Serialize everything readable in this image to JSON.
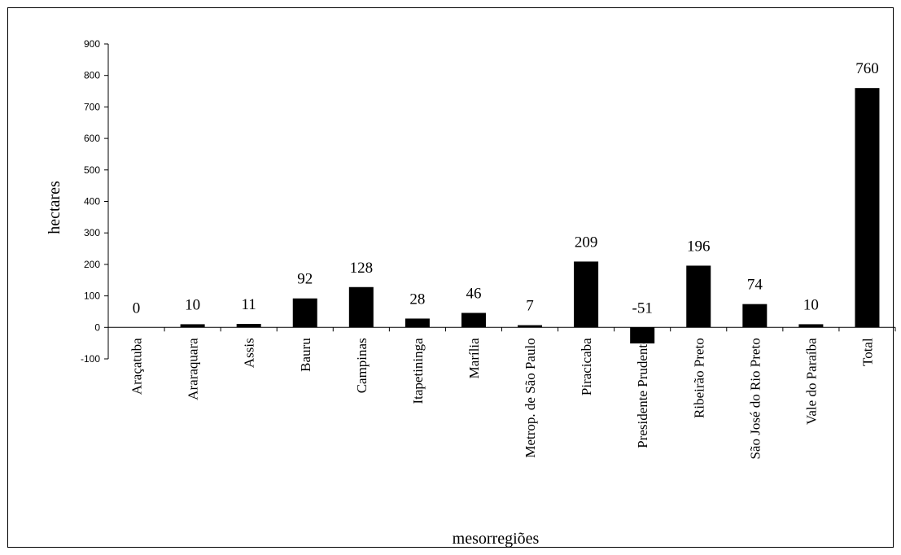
{
  "chart_data": {
    "type": "bar",
    "title": "",
    "xlabel": "mesorregiões",
    "ylabel": "hectares",
    "ylim": [
      -100,
      900
    ],
    "yticks": [
      -100,
      0,
      100,
      200,
      300,
      400,
      500,
      600,
      700,
      800,
      900
    ],
    "grid": false,
    "categories": [
      "Araçatuba",
      "Araraquara",
      "Assis",
      "Bauru",
      "Campinas",
      "Itapetininga",
      "Marília",
      "Metrop. de São Paulo",
      "Piracicaba",
      "Presidente Prudente",
      "Ribeirão Preto",
      "São José do Rio Preto",
      "Vale do Paraíba",
      "Total"
    ],
    "values": [
      0,
      10,
      11,
      92,
      128,
      28,
      46,
      7,
      209,
      -51,
      196,
      74,
      10,
      760
    ],
    "bar_color": "#000000"
  }
}
